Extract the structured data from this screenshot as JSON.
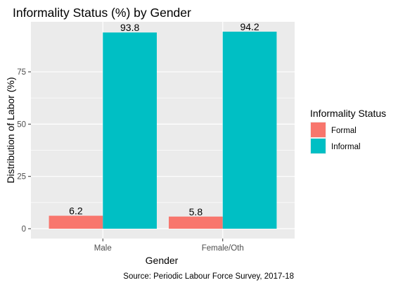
{
  "chart_data": {
    "type": "bar",
    "title": "Informality Status (%) by Gender",
    "xlabel": "Gender",
    "ylabel": "Distribution of Labor (%)",
    "categories": [
      "Male",
      "Female/Oth"
    ],
    "series": [
      {
        "name": "Formal",
        "values": [
          6.2,
          5.8
        ],
        "color": "#F8766D"
      },
      {
        "name": "Informal",
        "values": [
          93.8,
          94.2
        ],
        "color": "#00BFC4"
      }
    ],
    "yticks": [
      0,
      25,
      50,
      75
    ],
    "ylim": [
      -4.71,
      98.91
    ],
    "grid": true,
    "legend": {
      "title": "Informality Status",
      "position": "right"
    },
    "caption": "Source: Periodic Labour Force Survey, 2017-18",
    "panel_color": "#EBEBEB"
  }
}
